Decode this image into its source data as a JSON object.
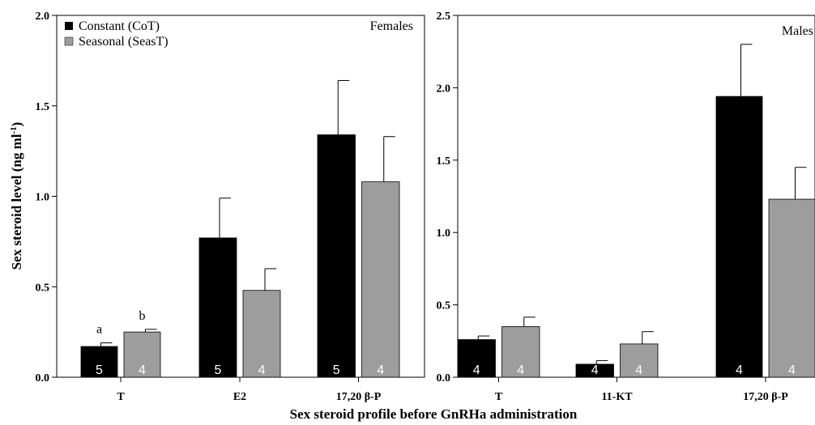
{
  "chart_data": [
    {
      "type": "bar",
      "panel_label": "Females",
      "ylabel": "Sex steroid level (ng ml-1)",
      "ylabel_main": "Sex steroid level (ng ml",
      "ylabel_sup": "-1",
      "ylabel_close": ")",
      "ylim": [
        0,
        2.0
      ],
      "yticks": [
        "0.0",
        "0.5",
        "1.0",
        "1.5",
        "2.0"
      ],
      "ytick_values": [
        0,
        0.5,
        1.0,
        1.5,
        2.0
      ],
      "categories": [
        "T",
        "E2",
        "17,20 β-P"
      ],
      "series": [
        {
          "name": "Constant (CoT)",
          "color": "#000000",
          "values": [
            0.17,
            0.77,
            1.34
          ],
          "errors": [
            0.02,
            0.22,
            0.3
          ],
          "n": [
            "5",
            "5",
            "5"
          ]
        },
        {
          "name": "Seasonal (SeasT)",
          "color": "#9d9d9d",
          "values": [
            0.25,
            0.48,
            1.08
          ],
          "errors": [
            0.015,
            0.12,
            0.25
          ],
          "n": [
            "4",
            "4",
            "4"
          ]
        }
      ],
      "annotations": [
        {
          "category": 0,
          "series": 0,
          "text": "a"
        },
        {
          "category": 0,
          "series": 1,
          "text": "b"
        }
      ],
      "legend": {
        "position": "top-left",
        "entries": [
          "Constant (CoT)",
          "Seasonal (SeasT)"
        ]
      }
    },
    {
      "type": "bar",
      "panel_label": "Males",
      "ylim": [
        0,
        2.5
      ],
      "yticks": [
        "0.0",
        "0.5",
        "1.0",
        "1.5",
        "2.0",
        "2.5"
      ],
      "ytick_values": [
        0,
        0.5,
        1.0,
        1.5,
        2.0,
        2.5
      ],
      "categories": [
        "T",
        "11-KT",
        "17,20 β-P"
      ],
      "series": [
        {
          "name": "Constant (CoT)",
          "color": "#000000",
          "values": [
            0.26,
            0.09,
            1.94
          ],
          "errors": [
            0.025,
            0.025,
            0.36
          ],
          "n": [
            "4",
            "4",
            "4"
          ]
        },
        {
          "name": "Seasonal (SeasT)",
          "color": "#9d9d9d",
          "values": [
            0.35,
            0.23,
            1.23
          ],
          "errors": [
            0.065,
            0.085,
            0.22
          ],
          "n": [
            "4",
            "4",
            "4"
          ]
        }
      ]
    }
  ],
  "xlabel": "Sex steroid profile before GnRHa administration"
}
